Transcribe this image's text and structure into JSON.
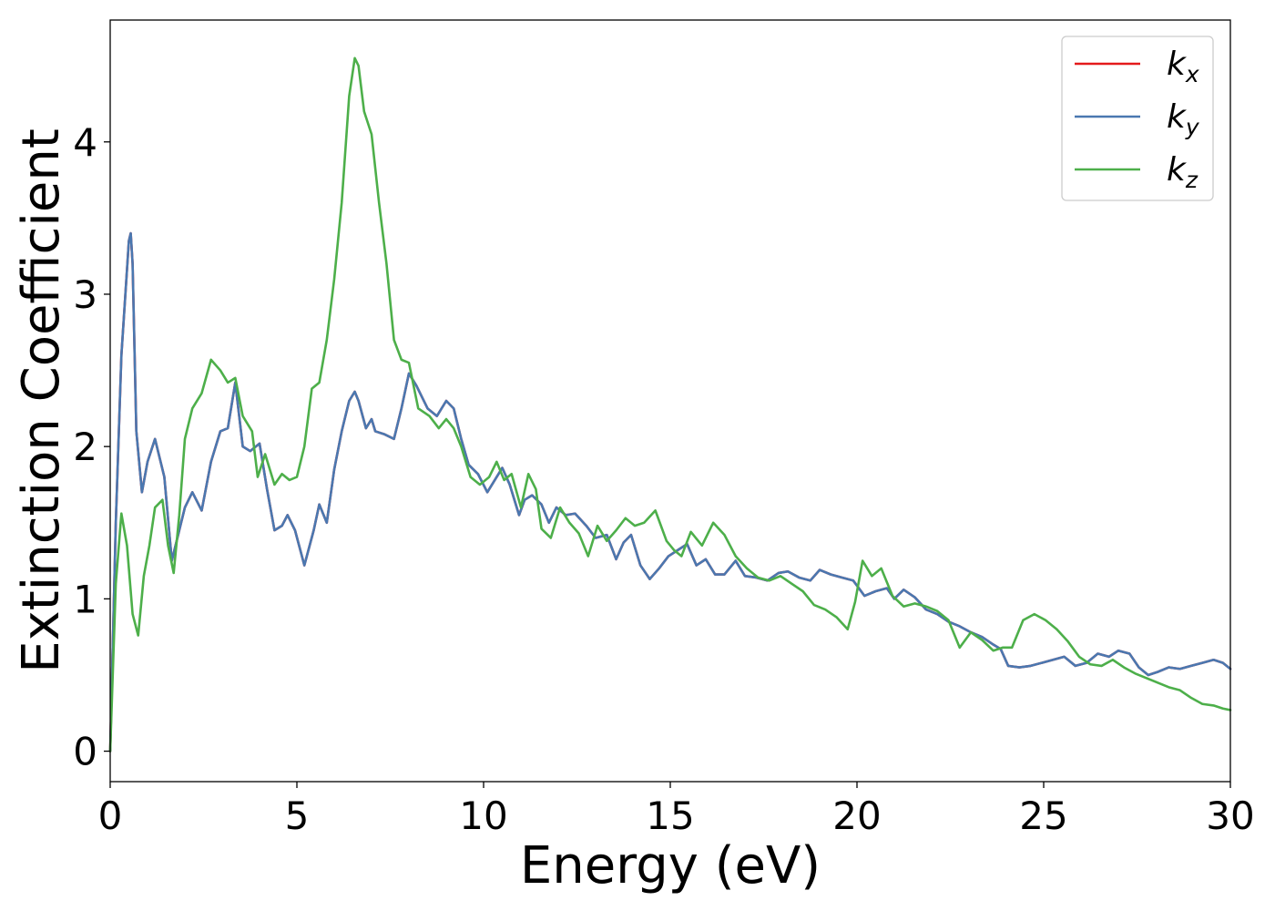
{
  "chart_data": {
    "type": "line",
    "title": "",
    "xlabel": "Energy (eV)",
    "ylabel": "Extinction Coefficient",
    "xlim": [
      0,
      30
    ],
    "ylim": [
      -0.2,
      4.8
    ],
    "xticks": [
      0,
      5,
      10,
      15,
      20,
      25,
      30
    ],
    "yticks": [
      0,
      1,
      2,
      3,
      4
    ],
    "grid": false,
    "legend_position": "top-right",
    "series": [
      {
        "name_base": "k",
        "name_sub": "x",
        "color": "#e41a1c",
        "x": [
          0,
          0.15,
          0.3,
          0.5,
          0.55,
          0.6,
          0.7,
          0.85,
          1.0,
          1.2,
          1.45,
          1.65,
          1.8,
          2.0,
          2.2,
          2.45,
          2.7,
          2.95,
          3.15,
          3.35,
          3.55,
          3.75,
          4.0,
          4.2,
          4.4,
          4.6,
          4.75,
          4.95,
          5.2,
          5.45,
          5.6,
          5.8,
          6.0,
          6.2,
          6.4,
          6.55,
          6.65,
          6.85,
          7.0,
          7.1,
          7.35,
          7.6,
          7.8,
          8.0,
          8.2,
          8.5,
          8.75,
          9.0,
          9.2,
          9.4,
          9.6,
          9.85,
          10.1,
          10.3,
          10.5,
          10.7,
          10.95,
          11.1,
          11.3,
          11.55,
          11.75,
          11.95,
          12.2,
          12.45,
          12.75,
          13.0,
          13.3,
          13.55,
          13.75,
          13.95,
          14.2,
          14.45,
          14.7,
          14.95,
          15.2,
          15.45,
          15.7,
          15.95,
          16.2,
          16.45,
          16.75,
          17.0,
          17.3,
          17.6,
          17.9,
          18.15,
          18.45,
          18.75,
          19.0,
          19.3,
          19.6,
          19.9,
          20.2,
          20.5,
          20.8,
          21.0,
          21.25,
          21.55,
          21.85,
          22.15,
          22.45,
          22.75,
          23.05,
          23.35,
          23.65,
          23.85,
          24.05,
          24.35,
          24.65,
          24.95,
          25.25,
          25.55,
          25.85,
          26.15,
          26.45,
          26.75,
          27.0,
          27.3,
          27.55,
          27.8,
          28.05,
          28.35,
          28.65,
          28.95,
          29.25,
          29.55,
          29.8,
          30.0
        ],
        "y": [
          0,
          1.5,
          2.6,
          3.35,
          3.4,
          3.2,
          2.1,
          1.7,
          1.9,
          2.05,
          1.8,
          1.25,
          1.4,
          1.6,
          1.7,
          1.58,
          1.9,
          2.1,
          2.12,
          2.42,
          2.0,
          1.97,
          2.02,
          1.72,
          1.45,
          1.48,
          1.55,
          1.45,
          1.22,
          1.45,
          1.62,
          1.5,
          1.85,
          2.1,
          2.3,
          2.36,
          2.3,
          2.12,
          2.18,
          2.1,
          2.08,
          2.05,
          2.25,
          2.48,
          2.4,
          2.25,
          2.2,
          2.3,
          2.25,
          2.05,
          1.88,
          1.82,
          1.7,
          1.78,
          1.86,
          1.75,
          1.55,
          1.65,
          1.68,
          1.62,
          1.5,
          1.6,
          1.55,
          1.56,
          1.48,
          1.4,
          1.42,
          1.26,
          1.37,
          1.42,
          1.22,
          1.13,
          1.2,
          1.28,
          1.32,
          1.36,
          1.22,
          1.26,
          1.16,
          1.16,
          1.25,
          1.15,
          1.14,
          1.12,
          1.17,
          1.18,
          1.14,
          1.12,
          1.19,
          1.16,
          1.14,
          1.12,
          1.02,
          1.05,
          1.07,
          1.0,
          1.06,
          1.01,
          0.93,
          0.9,
          0.85,
          0.82,
          0.78,
          0.75,
          0.7,
          0.67,
          0.56,
          0.55,
          0.56,
          0.58,
          0.6,
          0.62,
          0.56,
          0.58,
          0.64,
          0.62,
          0.66,
          0.64,
          0.55,
          0.5,
          0.52,
          0.55,
          0.54,
          0.56,
          0.58,
          0.6,
          0.58,
          0.54
        ]
      },
      {
        "name_base": "k",
        "name_sub": "y",
        "color": "#4a78b0",
        "x": [
          0,
          0.15,
          0.3,
          0.5,
          0.55,
          0.6,
          0.7,
          0.85,
          1.0,
          1.2,
          1.45,
          1.65,
          1.8,
          2.0,
          2.2,
          2.45,
          2.7,
          2.95,
          3.15,
          3.35,
          3.55,
          3.75,
          4.0,
          4.2,
          4.4,
          4.6,
          4.75,
          4.95,
          5.2,
          5.45,
          5.6,
          5.8,
          6.0,
          6.2,
          6.4,
          6.55,
          6.65,
          6.85,
          7.0,
          7.1,
          7.35,
          7.6,
          7.8,
          8.0,
          8.2,
          8.5,
          8.75,
          9.0,
          9.2,
          9.4,
          9.6,
          9.85,
          10.1,
          10.3,
          10.5,
          10.7,
          10.95,
          11.1,
          11.3,
          11.55,
          11.75,
          11.95,
          12.2,
          12.45,
          12.75,
          13.0,
          13.3,
          13.55,
          13.75,
          13.95,
          14.2,
          14.45,
          14.7,
          14.95,
          15.2,
          15.45,
          15.7,
          15.95,
          16.2,
          16.45,
          16.75,
          17.0,
          17.3,
          17.6,
          17.9,
          18.15,
          18.45,
          18.75,
          19.0,
          19.3,
          19.6,
          19.9,
          20.2,
          20.5,
          20.8,
          21.0,
          21.25,
          21.55,
          21.85,
          22.15,
          22.45,
          22.75,
          23.05,
          23.35,
          23.65,
          23.85,
          24.05,
          24.35,
          24.65,
          24.95,
          25.25,
          25.55,
          25.85,
          26.15,
          26.45,
          26.75,
          27.0,
          27.3,
          27.55,
          27.8,
          28.05,
          28.35,
          28.65,
          28.95,
          29.25,
          29.55,
          29.8,
          30.0
        ],
        "y": [
          0,
          1.5,
          2.6,
          3.35,
          3.4,
          3.2,
          2.1,
          1.7,
          1.9,
          2.05,
          1.8,
          1.25,
          1.4,
          1.6,
          1.7,
          1.58,
          1.9,
          2.1,
          2.12,
          2.42,
          2.0,
          1.97,
          2.02,
          1.72,
          1.45,
          1.48,
          1.55,
          1.45,
          1.22,
          1.45,
          1.62,
          1.5,
          1.85,
          2.1,
          2.3,
          2.36,
          2.3,
          2.12,
          2.18,
          2.1,
          2.08,
          2.05,
          2.25,
          2.48,
          2.4,
          2.25,
          2.2,
          2.3,
          2.25,
          2.05,
          1.88,
          1.82,
          1.7,
          1.78,
          1.86,
          1.75,
          1.55,
          1.65,
          1.68,
          1.62,
          1.5,
          1.6,
          1.55,
          1.56,
          1.48,
          1.4,
          1.42,
          1.26,
          1.37,
          1.42,
          1.22,
          1.13,
          1.2,
          1.28,
          1.32,
          1.36,
          1.22,
          1.26,
          1.16,
          1.16,
          1.25,
          1.15,
          1.14,
          1.12,
          1.17,
          1.18,
          1.14,
          1.12,
          1.19,
          1.16,
          1.14,
          1.12,
          1.02,
          1.05,
          1.07,
          1.0,
          1.06,
          1.01,
          0.93,
          0.9,
          0.85,
          0.82,
          0.78,
          0.75,
          0.7,
          0.67,
          0.56,
          0.55,
          0.56,
          0.58,
          0.6,
          0.62,
          0.56,
          0.58,
          0.64,
          0.62,
          0.66,
          0.64,
          0.55,
          0.5,
          0.52,
          0.55,
          0.54,
          0.56,
          0.58,
          0.6,
          0.58,
          0.54
        ]
      },
      {
        "name_base": "k",
        "name_sub": "z",
        "color": "#4daf4a",
        "x": [
          0,
          0.15,
          0.3,
          0.45,
          0.6,
          0.75,
          0.9,
          1.05,
          1.2,
          1.4,
          1.55,
          1.7,
          1.85,
          2.0,
          2.2,
          2.45,
          2.7,
          2.95,
          3.15,
          3.35,
          3.55,
          3.8,
          3.95,
          4.15,
          4.4,
          4.6,
          4.8,
          5.0,
          5.2,
          5.4,
          5.6,
          5.8,
          6.0,
          6.2,
          6.4,
          6.55,
          6.65,
          6.8,
          7.0,
          7.2,
          7.4,
          7.6,
          7.8,
          8.0,
          8.25,
          8.55,
          8.8,
          9.0,
          9.2,
          9.4,
          9.65,
          9.9,
          10.15,
          10.35,
          10.55,
          10.75,
          11.0,
          11.2,
          11.4,
          11.55,
          11.8,
          12.05,
          12.3,
          12.55,
          12.8,
          13.05,
          13.3,
          13.55,
          13.8,
          14.05,
          14.3,
          14.6,
          14.9,
          15.1,
          15.3,
          15.55,
          15.85,
          16.15,
          16.45,
          16.75,
          17.05,
          17.35,
          17.65,
          17.95,
          18.25,
          18.55,
          18.85,
          19.15,
          19.45,
          19.75,
          19.95,
          20.15,
          20.4,
          20.65,
          20.95,
          21.25,
          21.55,
          21.85,
          22.15,
          22.45,
          22.75,
          23.05,
          23.35,
          23.65,
          23.9,
          24.15,
          24.45,
          24.75,
          25.05,
          25.35,
          25.65,
          25.95,
          26.25,
          26.55,
          26.85,
          27.15,
          27.45,
          27.75,
          28.05,
          28.35,
          28.65,
          28.95,
          29.25,
          29.55,
          29.8,
          30.0
        ],
        "y": [
          0,
          1.1,
          1.56,
          1.35,
          0.9,
          0.76,
          1.15,
          1.35,
          1.6,
          1.65,
          1.35,
          1.17,
          1.55,
          2.05,
          2.25,
          2.35,
          2.57,
          2.5,
          2.42,
          2.45,
          2.2,
          2.1,
          1.8,
          1.95,
          1.75,
          1.82,
          1.78,
          1.8,
          2.0,
          2.38,
          2.42,
          2.7,
          3.1,
          3.6,
          4.3,
          4.55,
          4.5,
          4.2,
          4.05,
          3.6,
          3.2,
          2.7,
          2.57,
          2.55,
          2.25,
          2.2,
          2.12,
          2.18,
          2.12,
          2.0,
          1.8,
          1.75,
          1.8,
          1.9,
          1.78,
          1.82,
          1.6,
          1.82,
          1.72,
          1.46,
          1.4,
          1.6,
          1.5,
          1.43,
          1.28,
          1.48,
          1.38,
          1.45,
          1.53,
          1.48,
          1.5,
          1.58,
          1.38,
          1.32,
          1.28,
          1.44,
          1.35,
          1.5,
          1.42,
          1.28,
          1.2,
          1.14,
          1.12,
          1.15,
          1.1,
          1.05,
          0.96,
          0.93,
          0.88,
          0.8,
          0.98,
          1.25,
          1.15,
          1.2,
          1.02,
          0.95,
          0.97,
          0.95,
          0.92,
          0.86,
          0.68,
          0.78,
          0.73,
          0.66,
          0.68,
          0.68,
          0.86,
          0.9,
          0.86,
          0.8,
          0.72,
          0.62,
          0.57,
          0.56,
          0.6,
          0.55,
          0.51,
          0.48,
          0.45,
          0.42,
          0.4,
          0.35,
          0.31,
          0.3,
          0.28,
          0.27
        ]
      }
    ]
  }
}
